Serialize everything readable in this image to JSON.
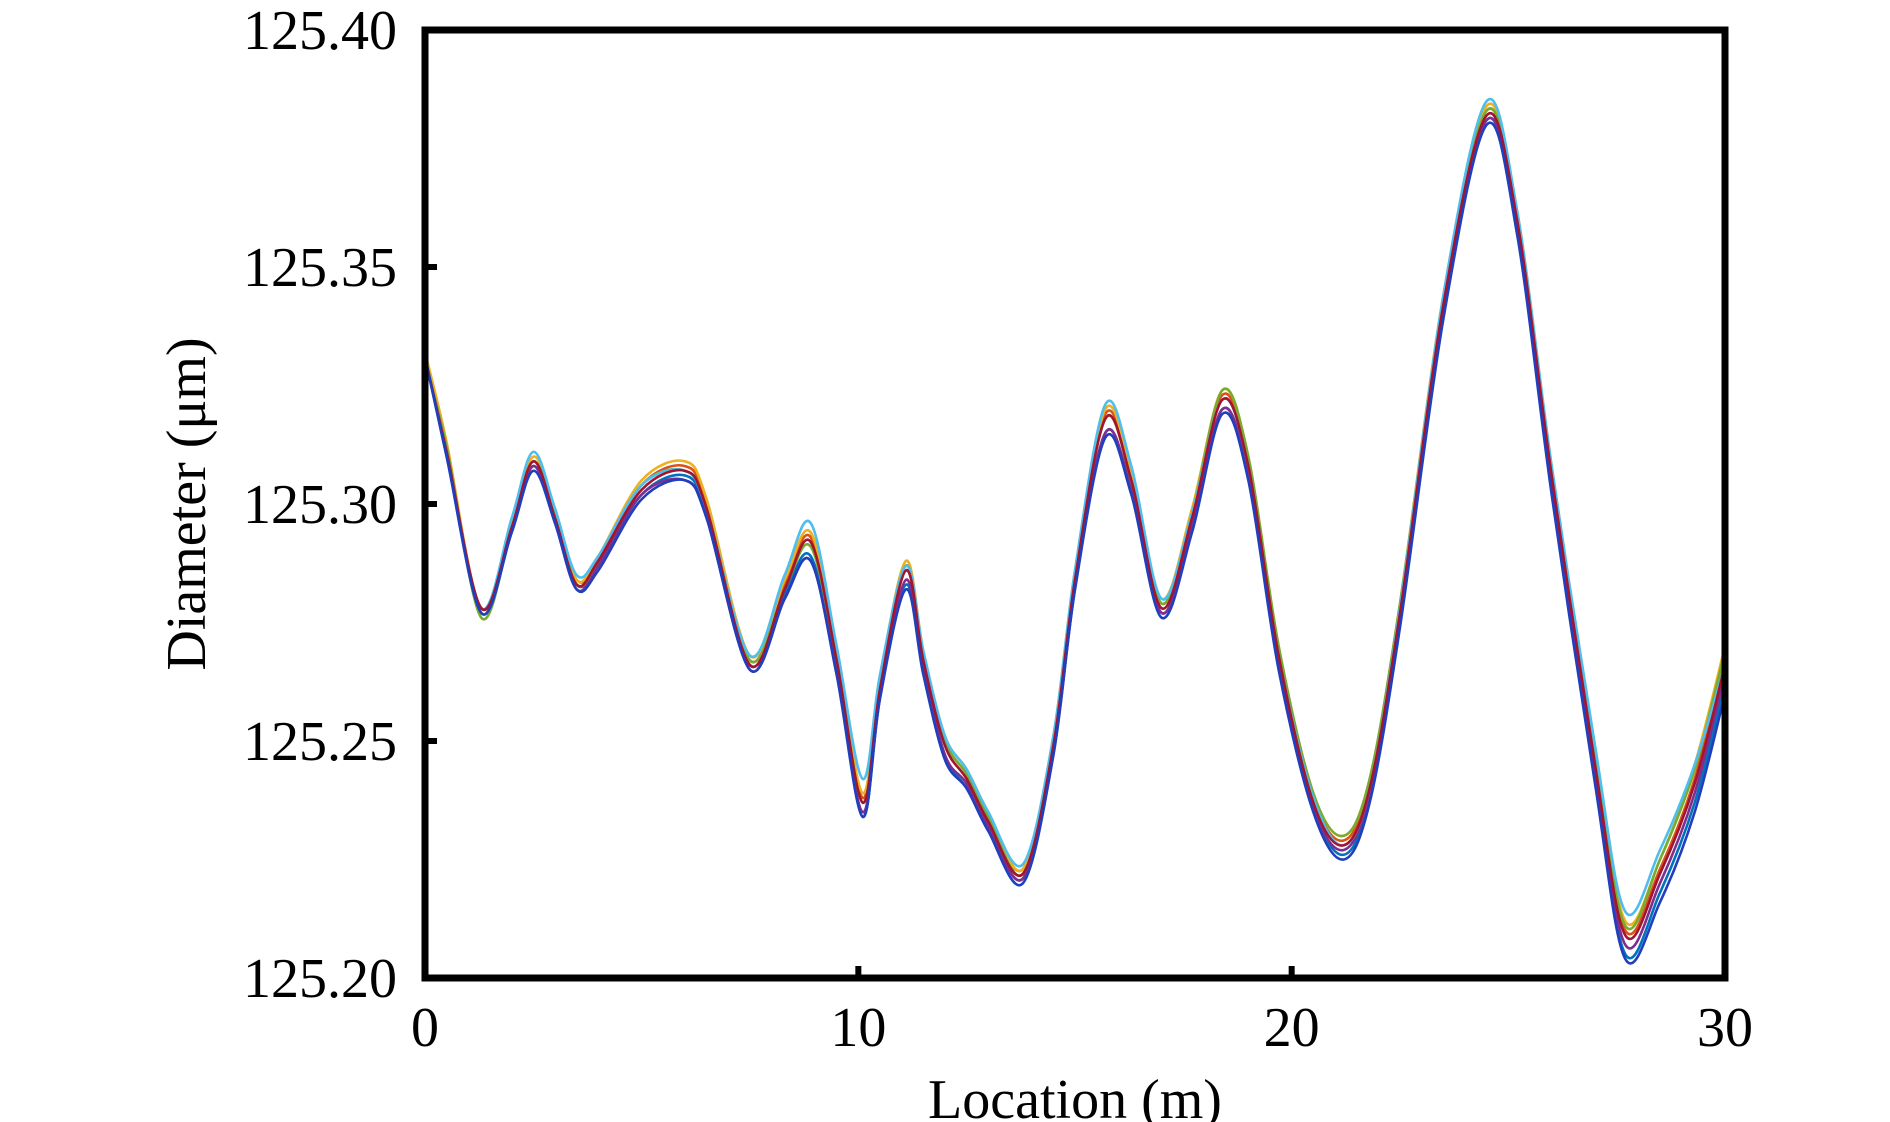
{
  "chart_data": {
    "type": "line",
    "title": "",
    "xlabel": "Location (m)",
    "ylabel": "Diameter (μm)",
    "xlim": [
      0,
      30
    ],
    "ylim": [
      125.2,
      125.4
    ],
    "xticks": [
      0,
      10,
      20,
      30
    ],
    "yticks": [
      125.2,
      125.25,
      125.3,
      125.35,
      125.4
    ],
    "xtick_labels": [
      "0",
      "10",
      "20",
      "30"
    ],
    "ytick_labels": [
      "125.20",
      "125.25",
      "125.30",
      "125.35",
      "125.40"
    ],
    "grid": false,
    "legend": "none",
    "x": [
      0,
      0.5,
      1.3,
      2.0,
      2.5,
      3.0,
      3.5,
      4.0,
      5.0,
      6.0,
      6.5,
      7.5,
      8.3,
      8.9,
      9.5,
      10.1,
      10.5,
      11.1,
      11.5,
      12.0,
      12.5,
      13.0,
      13.8,
      14.5,
      15.0,
      15.7,
      16.3,
      17.0,
      17.7,
      18.4,
      19.0,
      19.7,
      20.5,
      21.2,
      21.8,
      22.5,
      23.5,
      24.5,
      25.2,
      26.0,
      27.0,
      27.7,
      28.5,
      29.3,
      30.0
    ],
    "series": [
      {
        "color": "#0072BD",
        "values": [
          125.331,
          125.31,
          125.278,
          125.295,
          125.308,
          125.297,
          125.283,
          125.287,
          125.302,
          125.306,
          125.298,
          125.266,
          125.281,
          125.289,
          125.265,
          125.234,
          125.26,
          125.283,
          125.265,
          125.247,
          125.24,
          125.232,
          125.221,
          125.248,
          125.283,
          125.315,
          125.303,
          125.277,
          125.295,
          125.32,
          125.306,
          125.266,
          125.236,
          125.226,
          125.238,
          125.275,
          125.34,
          125.381,
          125.358,
          125.303,
          125.242,
          125.205,
          125.218,
          125.237,
          125.262
        ]
      },
      {
        "color": "#D95319",
        "values": [
          125.332,
          125.312,
          125.278,
          125.296,
          125.309,
          125.298,
          125.284,
          125.288,
          125.304,
          125.308,
          125.3,
          125.267,
          125.283,
          125.293,
          125.268,
          125.238,
          125.262,
          125.287,
          125.268,
          125.25,
          125.243,
          125.234,
          125.223,
          125.25,
          125.285,
          125.319,
          125.306,
          125.279,
          125.298,
          125.323,
          125.309,
          125.269,
          125.238,
          125.229,
          125.241,
          125.278,
          125.343,
          125.383,
          125.361,
          125.307,
          125.246,
          125.21,
          125.223,
          125.242,
          125.268
        ]
      },
      {
        "color": "#EDB120",
        "values": [
          125.332,
          125.313,
          125.277,
          125.296,
          125.31,
          125.299,
          125.284,
          125.289,
          125.305,
          125.309,
          125.301,
          125.268,
          125.284,
          125.294,
          125.269,
          125.239,
          125.263,
          125.288,
          125.269,
          125.251,
          125.244,
          125.235,
          125.223,
          125.251,
          125.286,
          125.32,
          125.307,
          125.28,
          125.299,
          125.324,
          125.31,
          125.27,
          125.239,
          125.23,
          125.242,
          125.279,
          125.344,
          125.384,
          125.362,
          125.308,
          125.248,
          125.212,
          125.225,
          125.245,
          125.27
        ]
      },
      {
        "color": "#7E2F8E",
        "values": [
          125.331,
          125.31,
          125.278,
          125.294,
          125.308,
          125.296,
          125.282,
          125.287,
          125.302,
          125.305,
          125.297,
          125.265,
          125.28,
          125.288,
          125.264,
          125.235,
          125.259,
          125.284,
          125.265,
          125.247,
          125.241,
          125.232,
          125.221,
          125.247,
          125.282,
          125.315,
          125.303,
          125.277,
          125.295,
          125.32,
          125.306,
          125.266,
          125.236,
          125.227,
          125.239,
          125.276,
          125.341,
          125.381,
          125.359,
          125.304,
          125.243,
          125.207,
          125.22,
          125.239,
          125.264
        ]
      },
      {
        "color": "#77AC30",
        "values": [
          125.33,
          125.312,
          125.276,
          125.295,
          125.309,
          125.298,
          125.283,
          125.288,
          125.304,
          125.307,
          125.299,
          125.267,
          125.282,
          125.291,
          125.267,
          125.237,
          125.262,
          125.287,
          125.268,
          125.25,
          125.243,
          125.234,
          125.222,
          125.25,
          125.285,
          125.318,
          125.305,
          125.279,
          125.298,
          125.324,
          125.31,
          125.27,
          125.239,
          125.23,
          125.242,
          125.279,
          125.343,
          125.383,
          125.361,
          125.307,
          125.247,
          125.211,
          125.225,
          125.244,
          125.269
        ]
      },
      {
        "color": "#4DBEEE",
        "values": [
          125.331,
          125.311,
          125.278,
          125.297,
          125.311,
          125.299,
          125.285,
          125.289,
          125.304,
          125.307,
          125.299,
          125.268,
          125.285,
          125.296,
          125.27,
          125.242,
          125.264,
          125.287,
          125.269,
          125.251,
          125.244,
          125.235,
          125.224,
          125.251,
          125.286,
          125.321,
          125.308,
          125.28,
          125.298,
          125.322,
          125.308,
          125.268,
          125.238,
          125.228,
          125.24,
          125.278,
          125.344,
          125.385,
          125.362,
          125.308,
          125.249,
          125.214,
          125.227,
          125.245,
          125.266
        ]
      },
      {
        "color": "#A2142F",
        "values": [
          125.331,
          125.311,
          125.278,
          125.295,
          125.309,
          125.297,
          125.283,
          125.288,
          125.303,
          125.307,
          125.299,
          125.266,
          125.282,
          125.292,
          125.267,
          125.237,
          125.261,
          125.286,
          125.267,
          125.249,
          125.242,
          125.233,
          125.222,
          125.249,
          125.284,
          125.318,
          125.305,
          125.278,
          125.297,
          125.322,
          125.308,
          125.268,
          125.237,
          125.228,
          125.24,
          125.277,
          125.342,
          125.382,
          125.36,
          125.306,
          125.245,
          125.209,
          125.222,
          125.241,
          125.266
        ]
      },
      {
        "color": "#1f3fbf",
        "values": [
          125.331,
          125.31,
          125.277,
          125.294,
          125.307,
          125.296,
          125.282,
          125.286,
          125.301,
          125.305,
          125.297,
          125.265,
          125.28,
          125.288,
          125.264,
          125.234,
          125.259,
          125.282,
          125.264,
          125.246,
          125.24,
          125.231,
          125.22,
          125.247,
          125.282,
          125.314,
          125.302,
          125.276,
          125.294,
          125.319,
          125.305,
          125.265,
          125.235,
          125.225,
          125.237,
          125.274,
          125.339,
          125.38,
          125.357,
          125.302,
          125.241,
          125.204,
          125.216,
          125.235,
          125.26
        ]
      }
    ]
  }
}
